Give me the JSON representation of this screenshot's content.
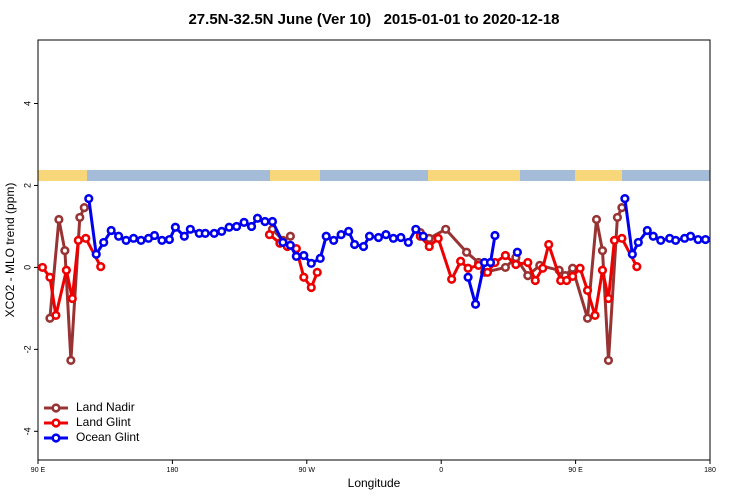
{
  "chart_data": {
    "type": "line",
    "title": "27.5N-32.5N June (Ver 10)   2015-01-01 to 2020-12-18",
    "xlabel": "Longitude",
    "ylabel": "XCO2 - MLO trend (ppm)",
    "xlim": [
      90,
      540
    ],
    "xticks": [
      {
        "value": 90,
        "label": "90 E"
      },
      180,
      {
        "value": 270,
        "label": "90 W"
      },
      {
        "value": 360,
        "label": "0"
      },
      {
        "value": 450,
        "label": "90 E"
      },
      {
        "value": 540,
        "label": "180"
      }
    ],
    "ylim": [
      -4.7,
      5.55
    ],
    "yticks": [
      -4,
      -2,
      0,
      2,
      4
    ],
    "legend": "lower left",
    "series": [
      {
        "name": "Land Nadir",
        "color": "#993333",
        "x": [
          98,
          104,
          108,
          112,
          118,
          121,
          null,
          247,
          254,
          259,
          null,
          346,
          352,
          363,
          377,
          385,
          389,
          403,
          410,
          418,
          426,
          439,
          443,
          448,
          458,
          464,
          468,
          472,
          478,
          481
        ],
        "values": [
          -1.24,
          1.17,
          0.41,
          -2.27,
          1.22,
          1.46,
          null,
          0.93,
          0.66,
          0.76,
          null,
          0.85,
          0.71,
          0.93,
          0.37,
          0.12,
          -0.12,
          0,
          0.24,
          -0.2,
          0.05,
          -0.07,
          -0.2,
          -0.02,
          -1.24,
          1.17,
          0.41,
          -2.27,
          1.22,
          1.46
        ]
      },
      {
        "name": "Land Glint",
        "color": "#ee0000",
        "x": [
          93,
          98,
          102,
          109,
          113,
          117,
          122,
          132,
          null,
          245,
          252,
          257,
          263,
          268,
          273,
          277,
          null,
          346,
          352,
          358,
          367,
          373,
          378,
          385,
          391,
          396,
          403,
          410,
          418,
          423,
          428,
          432,
          440,
          444,
          448,
          453,
          458,
          463,
          468,
          472,
          476,
          481,
          491
        ],
        "values": [
          0,
          -0.24,
          -1.17,
          -0.07,
          -0.76,
          0.66,
          0.71,
          0.02,
          null,
          0.8,
          0.59,
          0.51,
          0.46,
          -0.24,
          -0.49,
          -0.12,
          null,
          0.76,
          0.51,
          0.71,
          -0.29,
          0.15,
          -0.02,
          0.05,
          -0.12,
          0.12,
          0.29,
          0.07,
          0.12,
          -0.32,
          -0.02,
          0.56,
          -0.32,
          -0.32,
          -0.22,
          -0.02,
          -0.56,
          -1.17,
          -0.07,
          -0.76,
          0.66,
          0.71,
          0.02
        ]
      },
      {
        "name": "Ocean Glint",
        "color": "#0000ee",
        "x": [
          124,
          129,
          134,
          139,
          144,
          149,
          154,
          159,
          164,
          168,
          173,
          178,
          182,
          188,
          192,
          198,
          202,
          208,
          213,
          218,
          223,
          228,
          233,
          237,
          242,
          247,
          254,
          259,
          263,
          268,
          273,
          279,
          283,
          288,
          293,
          298,
          302,
          308,
          312,
          318,
          323,
          328,
          333,
          338,
          343,
          348,
          null,
          378,
          383,
          389,
          393,
          396,
          null,
          411,
          null,
          483,
          488,
          492,
          498,
          502,
          507,
          513,
          517,
          523,
          527,
          532,
          537
        ],
        "values": [
          1.68,
          0.32,
          0.61,
          0.9,
          0.76,
          0.66,
          0.71,
          0.66,
          0.71,
          0.78,
          0.66,
          0.68,
          0.98,
          0.76,
          0.93,
          0.83,
          0.83,
          0.83,
          0.88,
          0.98,
          1.0,
          1.1,
          1.0,
          1.2,
          1.12,
          1.12,
          0.61,
          0.54,
          0.27,
          0.29,
          0.1,
          0.22,
          0.76,
          0.66,
          0.8,
          0.88,
          0.56,
          0.51,
          0.76,
          0.73,
          0.8,
          0.71,
          0.73,
          0.61,
          0.93,
          0.76,
          null,
          -0.24,
          -0.9,
          0.12,
          0.12,
          0.78,
          null,
          0.37,
          null,
          1.68,
          0.32,
          0.61,
          0.9,
          0.76,
          0.66,
          0.71,
          0.66,
          0.71,
          0.76,
          0.68,
          0.68
        ]
      }
    ]
  }
}
